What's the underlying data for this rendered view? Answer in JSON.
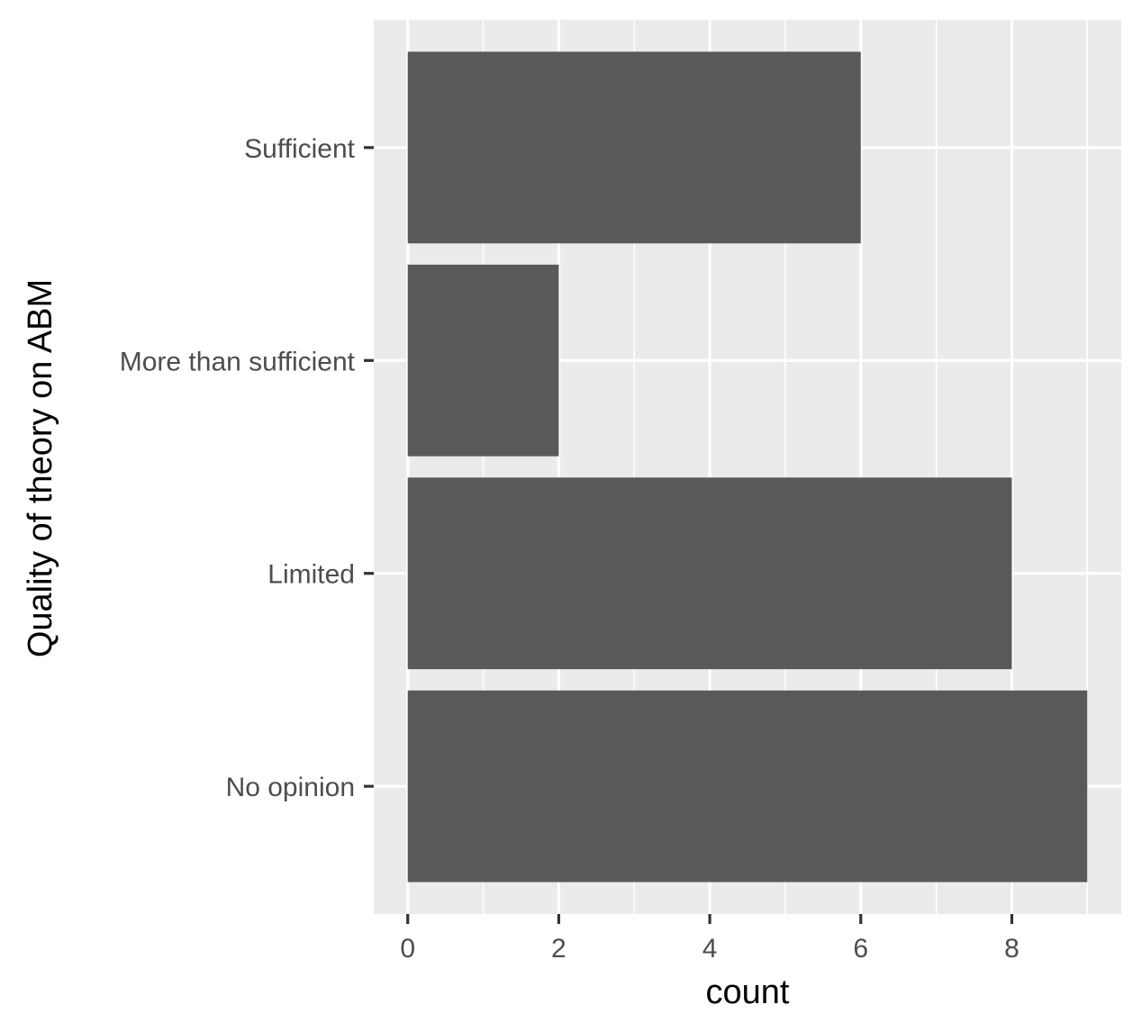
{
  "chart_data": {
    "type": "bar",
    "orientation": "horizontal",
    "categories": [
      "Sufficient",
      "More than sufficient",
      "Limited",
      "No opinion"
    ],
    "values": [
      6,
      2,
      8,
      9
    ],
    "title": "",
    "xlabel": "count",
    "ylabel": "Quality of theory on ABM",
    "xlim": [
      -0.45,
      9.45
    ],
    "xticks": [
      0,
      2,
      4,
      6,
      8
    ],
    "xtick_labels": [
      "0",
      "2",
      "4",
      "6",
      "8"
    ],
    "grid": true,
    "legend": "none",
    "colors": {
      "panel_background": "#ebebeb",
      "grid": "#ffffff",
      "bar": "#595959",
      "tick": "#333333",
      "tick_label": "#4d4d4d",
      "axis_title": "#000000"
    }
  }
}
